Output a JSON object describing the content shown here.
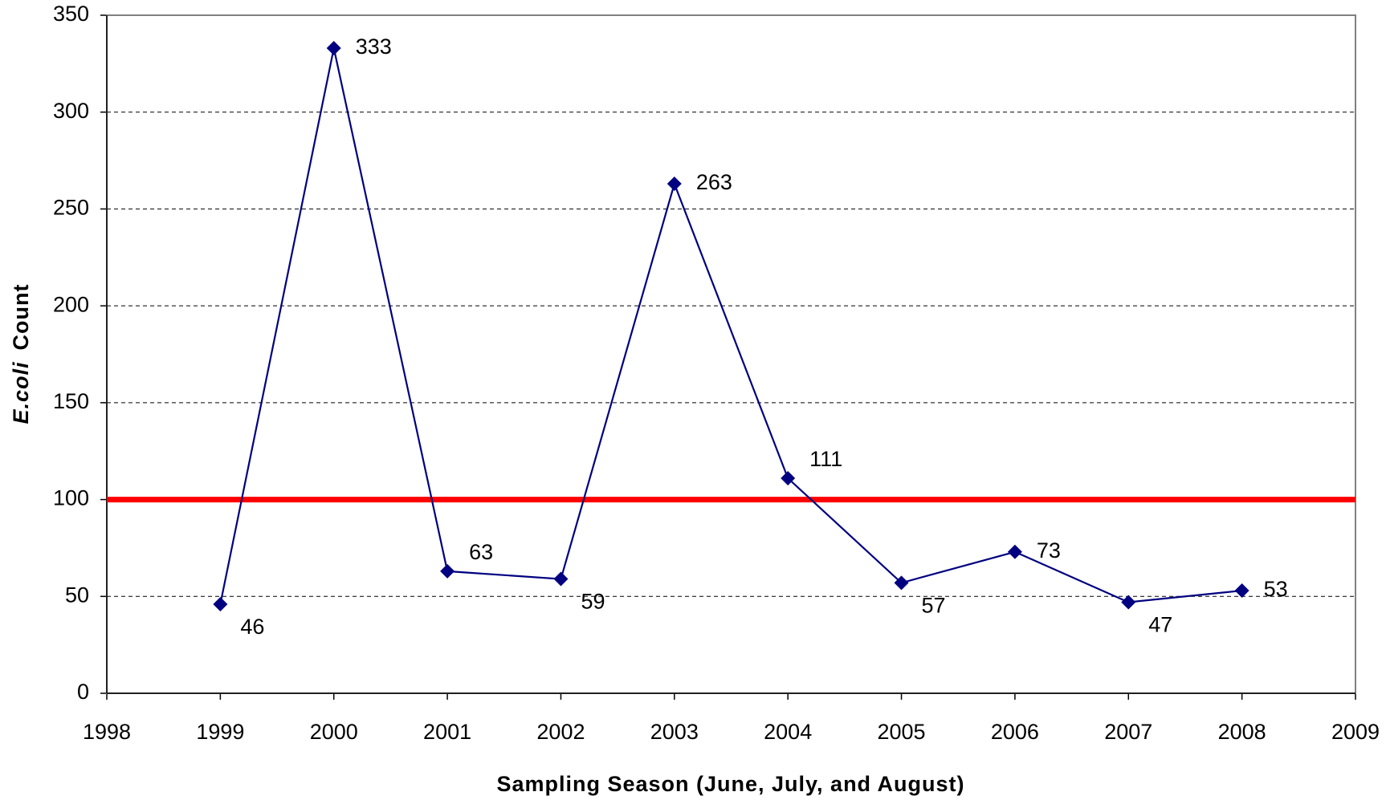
{
  "chart_data": {
    "type": "line",
    "xlabel": "Sampling Season (June, July, and August)",
    "ylabel": {
      "italic": "E.coli",
      "text": "Count"
    },
    "x": [
      1999,
      2000,
      2001,
      2002,
      2003,
      2004,
      2005,
      2006,
      2007,
      2008
    ],
    "series": [
      {
        "color": "#000080",
        "values": [
          46,
          333,
          63,
          59,
          263,
          111,
          57,
          73,
          47,
          53
        ]
      }
    ],
    "xlim": [
      1998,
      2009
    ],
    "xticks": [
      1998,
      1999,
      2000,
      2001,
      2002,
      2003,
      2004,
      2005,
      2006,
      2007,
      2008,
      2009
    ],
    "ylim": [
      0,
      350
    ],
    "yticks": [
      0,
      50,
      100,
      150,
      200,
      250,
      300,
      350
    ],
    "grid": true,
    "reference_line": {
      "value": 100,
      "color": "#ff0000"
    }
  }
}
